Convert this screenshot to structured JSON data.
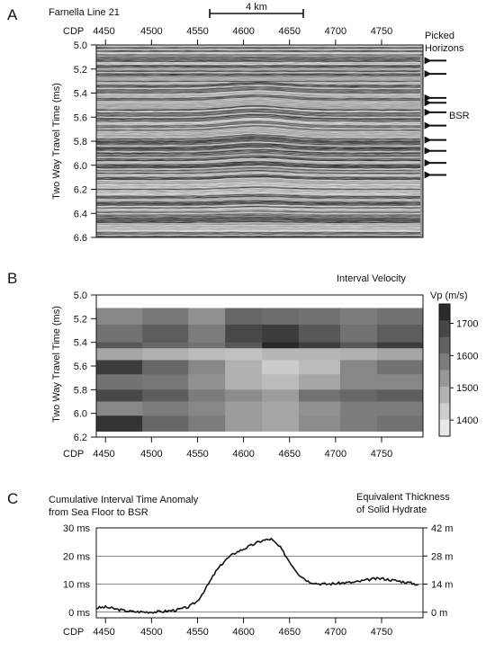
{
  "panel_a": {
    "letter": "A",
    "title": "Farnella Line 21",
    "scale_bar_label": "4 km",
    "cdp_prefix": "CDP",
    "cdp_ticks": [
      "4450",
      "4500",
      "4550",
      "4600",
      "4650",
      "4700",
      "4750"
    ],
    "ylabel": "Two Way Travel Time (ms)",
    "y_ticks": [
      "5.0",
      "5.2",
      "5.4",
      "5.6",
      "5.8",
      "6.0",
      "6.2",
      "6.4",
      "6.6"
    ],
    "picked_label_1": "Picked",
    "picked_label_2": "Horizons",
    "bsr_label": "BSR",
    "picked_horizon_times": [
      5.13,
      5.24,
      5.44,
      5.48,
      5.56,
      5.67,
      5.79,
      5.88,
      5.98,
      6.08
    ]
  },
  "panel_b": {
    "letter": "B",
    "title": "Interval Velocity",
    "colorbar_title": "Vp (m/s)",
    "colorbar_ticks": [
      "1700",
      "1600",
      "1500",
      "1400"
    ],
    "cdp_prefix": "CDP",
    "cdp_ticks": [
      "4450",
      "4500",
      "4550",
      "4600",
      "4650",
      "4700",
      "4750"
    ],
    "ylabel": "Two Way Travel Time (ms)",
    "y_ticks": [
      "5.0",
      "5.2",
      "5.4",
      "5.6",
      "5.8",
      "6.0",
      "6.2"
    ]
  },
  "panel_c": {
    "letter": "C",
    "left_title_1": "Cumulative Interval Time Anomaly",
    "left_title_2": "from Sea Floor to BSR",
    "right_title_1": "Equivalent Thickness",
    "right_title_2": "of Solid Hydrate",
    "left_ticks": [
      "30 ms",
      "20 ms",
      "10 ms",
      "0 ms"
    ],
    "right_ticks": [
      "42 m",
      "28 m",
      "14 m",
      "0 m"
    ],
    "cdp_prefix": "CDP",
    "cdp_ticks": [
      "4450",
      "4500",
      "4550",
      "4600",
      "4650",
      "4700",
      "4750"
    ]
  },
  "chart_data": [
    {
      "type": "line",
      "panel": "C",
      "xlabel": "CDP",
      "xlim": [
        4440,
        4795
      ],
      "ylim": [
        -2,
        30
      ],
      "y2lim": [
        -2.8,
        42
      ],
      "grid": true,
      "series": [
        {
          "x": [
            4440,
            4450,
            4460,
            4470,
            4480,
            4490,
            4500,
            4510,
            4520,
            4530,
            4540,
            4550,
            4560,
            4570,
            4580,
            4590,
            4600,
            4610,
            4620,
            4630,
            4640,
            4650,
            4660,
            4670,
            4680,
            4690,
            4700,
            4710,
            4720,
            4730,
            4740,
            4750,
            4760,
            4770,
            4780,
            4790
          ],
          "y": [
            1.5,
            1.8,
            1.2,
            0.6,
            0.2,
            0.1,
            0.1,
            0.2,
            0.5,
            1.0,
            1.8,
            4.0,
            9.0,
            14.5,
            18.5,
            21.0,
            22.5,
            24.0,
            25.5,
            26.0,
            23.0,
            18.0,
            13.5,
            11.0,
            10.2,
            10.0,
            10.2,
            10.5,
            10.6,
            11.2,
            11.8,
            12.0,
            11.5,
            11.0,
            10.5,
            9.8
          ]
        }
      ]
    },
    {
      "type": "heatmap",
      "panel": "B",
      "title": "Interval Velocity",
      "xlabel": "CDP",
      "ylabel": "Two Way Travel Time (ms)",
      "xlim": [
        4440,
        4795
      ],
      "ylim": [
        5.0,
        6.2
      ],
      "colorbar_label": "Vp (m/s)",
      "colorbar_range": [
        1350,
        1760
      ],
      "columns": [
        4440,
        4490,
        4540,
        4580,
        4620,
        4660,
        4705,
        4745,
        4795
      ],
      "rows": [
        5.11,
        5.25,
        5.4,
        5.45,
        5.55,
        5.67,
        5.8,
        5.9,
        6.02,
        6.15
      ],
      "values": [
        [
          1560,
          1590,
          1540,
          1620,
          1610,
          1600,
          1580,
          1600
        ],
        [
          1600,
          1640,
          1580,
          1680,
          1700,
          1650,
          1600,
          1640
        ],
        [
          1650,
          1620,
          1600,
          1650,
          1740,
          1700,
          1650,
          1700
        ],
        [
          1500,
          1480,
          1460,
          1450,
          1470,
          1470,
          1480,
          1500
        ],
        [
          1700,
          1620,
          1560,
          1480,
          1430,
          1460,
          1560,
          1600
        ],
        [
          1600,
          1590,
          1540,
          1480,
          1460,
          1500,
          1560,
          1560
        ],
        [
          1680,
          1640,
          1580,
          1550,
          1520,
          1600,
          1620,
          1640
        ],
        [
          1560,
          1580,
          1560,
          1520,
          1500,
          1540,
          1580,
          1580
        ],
        [
          1720,
          1620,
          1580,
          1520,
          1500,
          1550,
          1580,
          1600
        ]
      ]
    }
  ]
}
